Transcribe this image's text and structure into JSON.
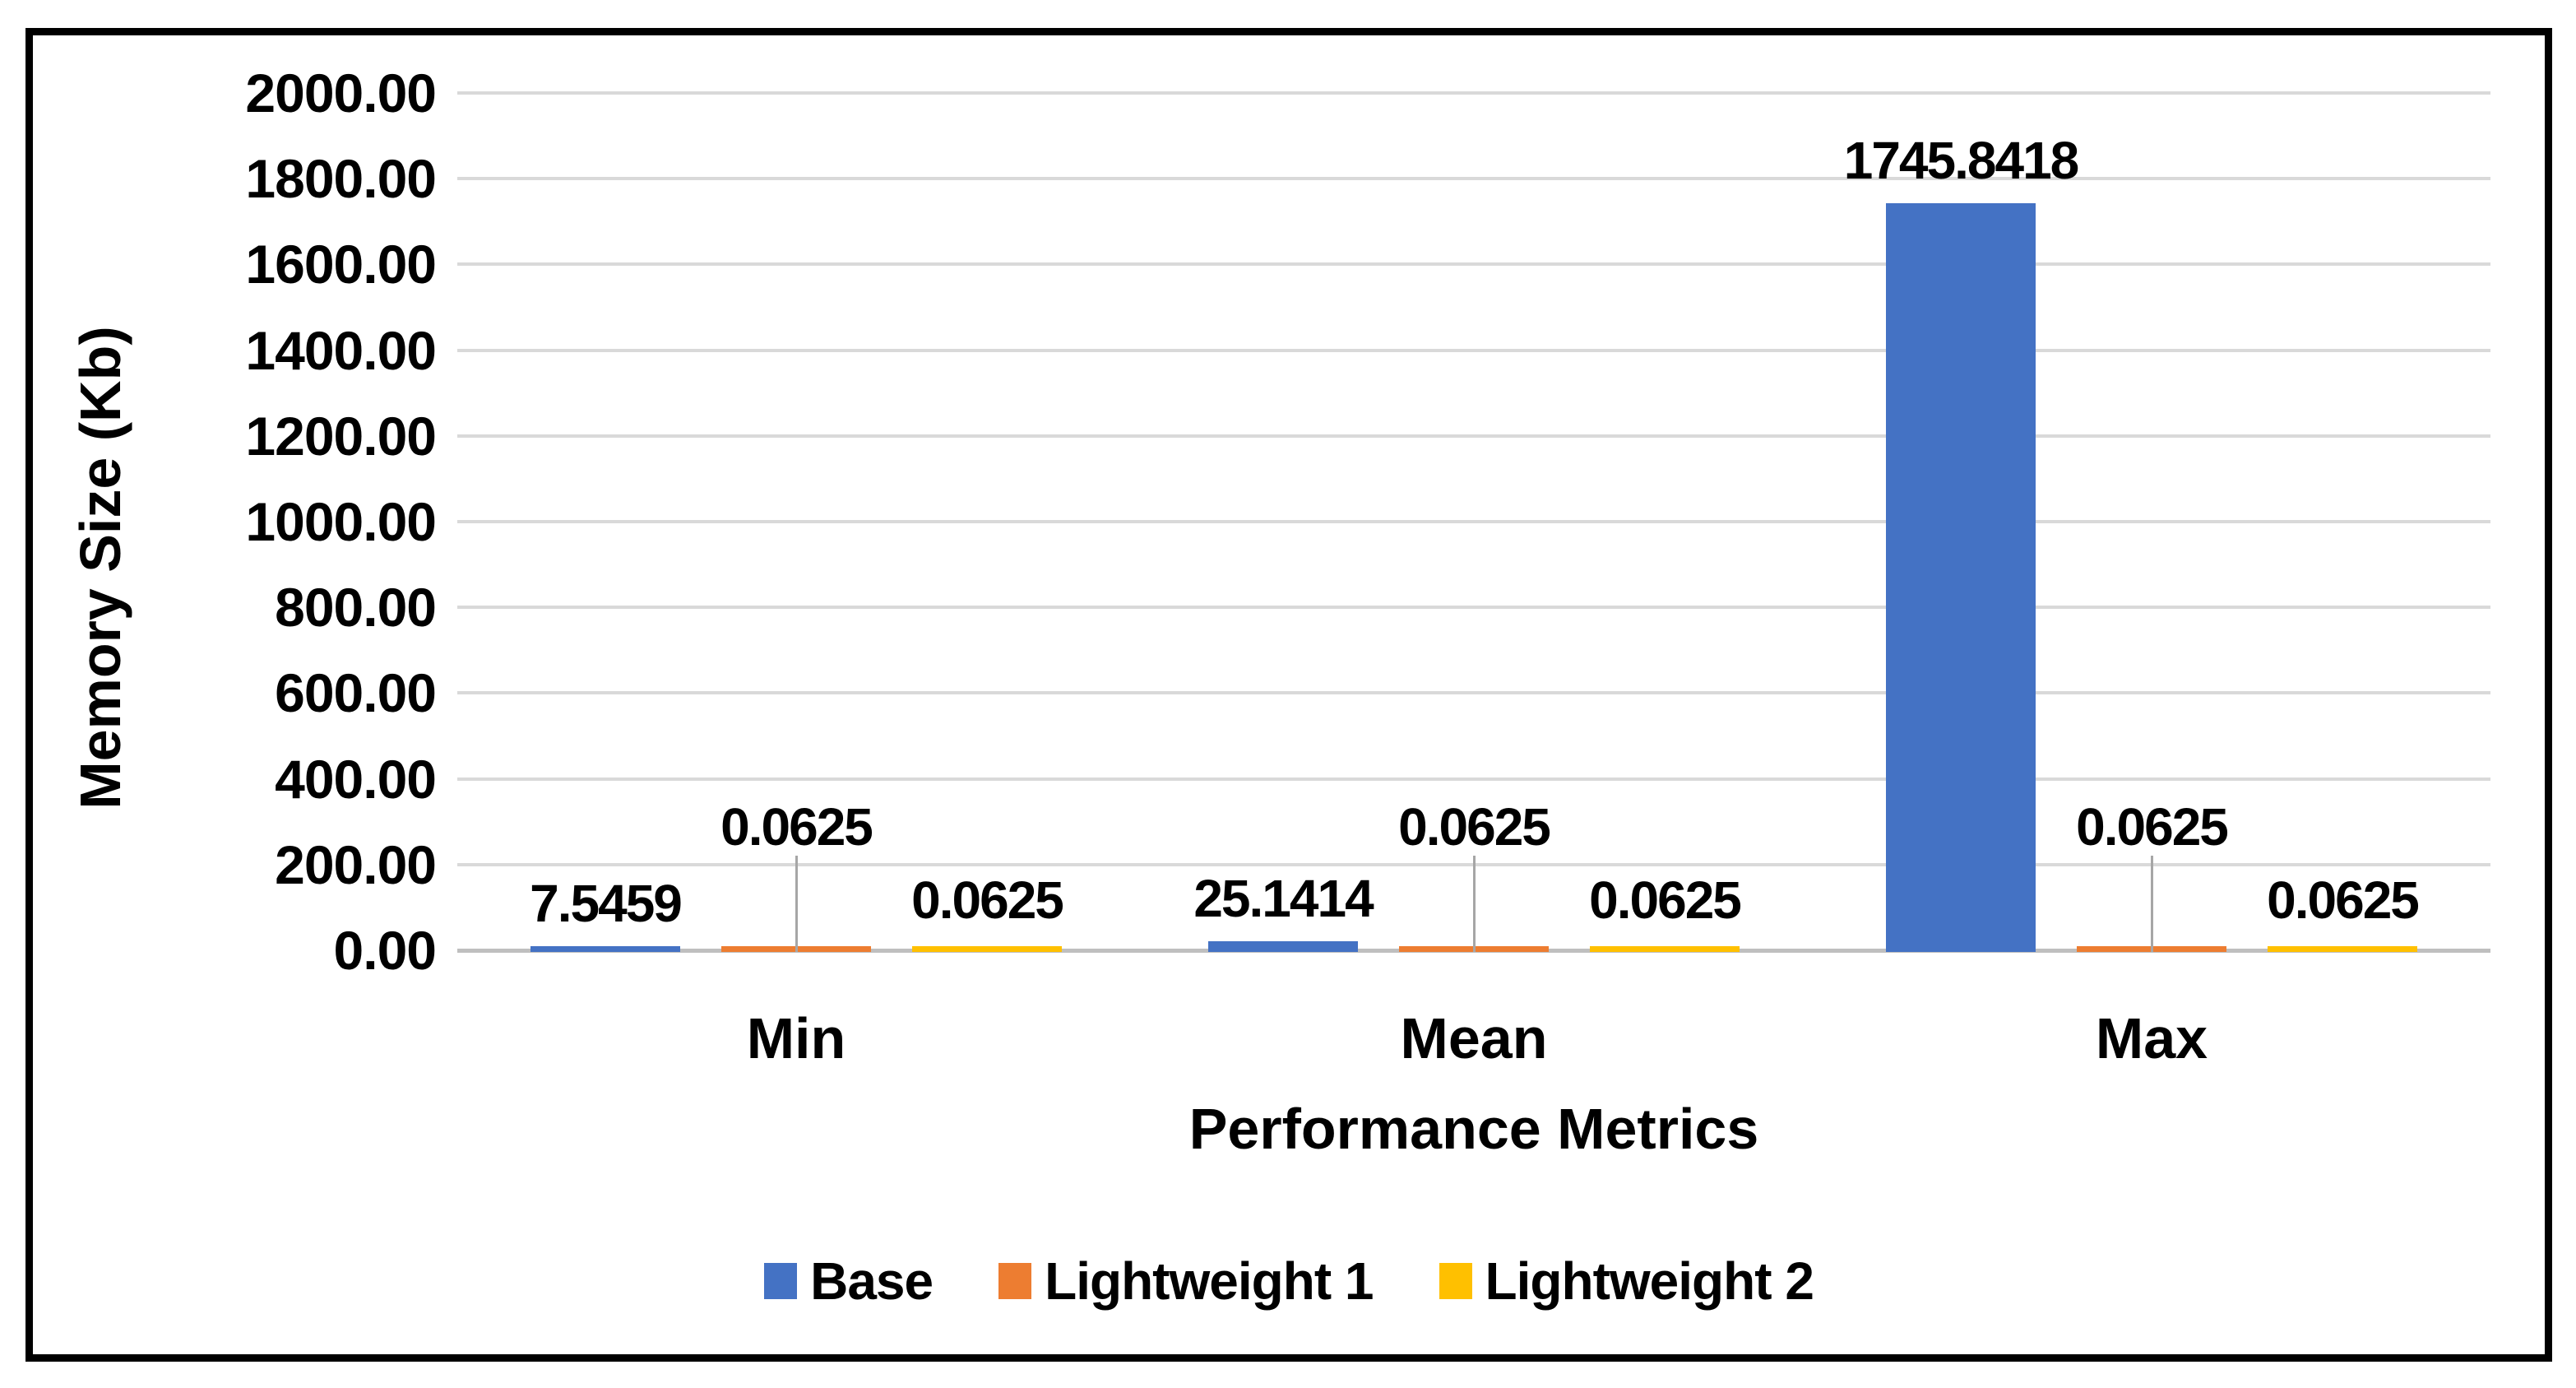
{
  "chart_data": {
    "type": "bar",
    "title": "",
    "xlabel": "Performance Metrics",
    "ylabel": "Memory Size (Kb)",
    "categories": [
      "Min",
      "Mean",
      "Max"
    ],
    "series": [
      {
        "name": "Base",
        "color": "#4472C4",
        "values": [
          7.5459,
          25.1414,
          1745.8418
        ],
        "labels": [
          "7.5459",
          "25.1414",
          "1745.8418"
        ],
        "label_placement": "above-bar"
      },
      {
        "name": "Lightweight 1",
        "color": "#ED7D31",
        "values": [
          0.0625,
          0.0625,
          0.0625
        ],
        "labels": [
          "0.0625",
          "0.0625",
          "0.0625"
        ],
        "label_placement": "raised-with-leader-line"
      },
      {
        "name": "Lightweight 2",
        "color": "#FFC000",
        "values": [
          0.0625,
          0.0625,
          0.0625
        ],
        "labels": [
          "0.0625",
          "0.0625",
          "0.0625"
        ],
        "label_placement": "near-baseline"
      }
    ],
    "y_axis": {
      "min": 0,
      "max": 2000,
      "step": 200,
      "tick_labels": [
        "0.00",
        "200.00",
        "400.00",
        "600.00",
        "800.00",
        "1000.00",
        "1200.00",
        "1400.00",
        "1600.00",
        "1800.00",
        "2000.00"
      ]
    },
    "grid": "horizontal",
    "legend_position": "bottom",
    "colors": {
      "gridline": "#D9D9D9",
      "axis_line": "#BFBFBF",
      "leader_line": "#A6A6A6",
      "text": "#000000",
      "frame_border": "#000000",
      "background": "#FFFFFF"
    }
  }
}
